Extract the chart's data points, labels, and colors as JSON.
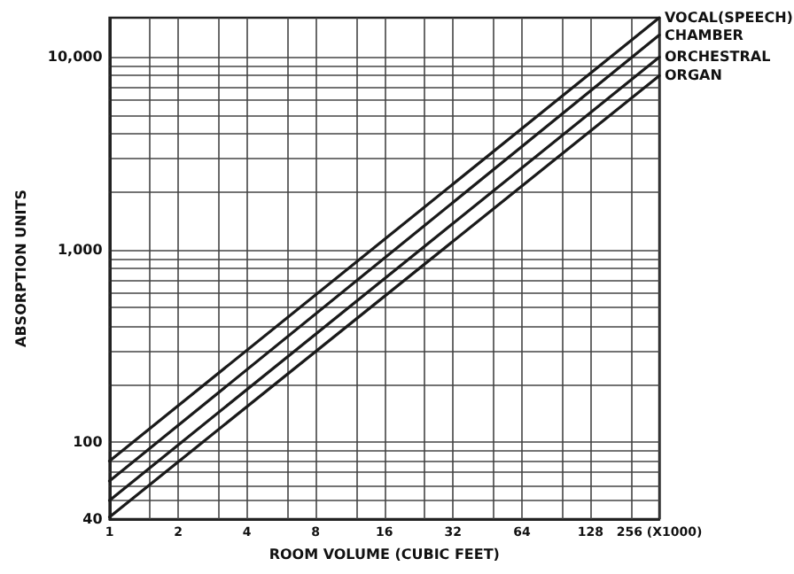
{
  "chart_data": {
    "type": "line",
    "xlabel": "ROOM VOLUME (CUBIC FEET)",
    "ylabel": "ABSORPTION UNITS",
    "log": "xy",
    "grid": true,
    "legend": false,
    "marker": "none",
    "line_style": "solid",
    "xlim": [
      1,
      256
    ],
    "ylim": [
      40,
      16000
    ],
    "x": [
      1,
      256
    ],
    "xticks": [
      1,
      {
        "value": 1.5,
        "label": null
      },
      2,
      {
        "value": 3,
        "label": null
      },
      4,
      {
        "value": 6,
        "label": null
      },
      8,
      {
        "value": 12,
        "label": null
      },
      16,
      {
        "value": 24,
        "label": null
      },
      32,
      {
        "value": 48,
        "label": null
      },
      64,
      {
        "value": 96,
        "label": null
      },
      128,
      {
        "value": 192,
        "label": null
      },
      {
        "value": 256,
        "label": "256 (X1000)"
      }
    ],
    "yticks": [
      40,
      {
        "value": 50,
        "label": null
      },
      {
        "value": 60,
        "label": null
      },
      {
        "value": 70,
        "label": null
      },
      {
        "value": 80,
        "label": null
      },
      {
        "value": 90,
        "label": null
      },
      100,
      {
        "value": 200,
        "label": null
      },
      {
        "value": 300,
        "label": null
      },
      {
        "value": 400,
        "label": null
      },
      {
        "value": 500,
        "label": null
      },
      {
        "value": 600,
        "label": null
      },
      {
        "value": 700,
        "label": null
      },
      {
        "value": 800,
        "label": null
      },
      {
        "value": 900,
        "label": null
      },
      {
        "value": 1000,
        "label": "1,000"
      },
      {
        "value": 2000,
        "label": null
      },
      {
        "value": 3000,
        "label": null
      },
      {
        "value": 4000,
        "label": null
      },
      {
        "value": 5000,
        "label": null
      },
      {
        "value": 6000,
        "label": null
      },
      {
        "value": 7000,
        "label": null
      },
      {
        "value": 8000,
        "label": null
      },
      {
        "value": 9000,
        "label": null
      },
      {
        "value": 10000,
        "label": "10,000"
      }
    ],
    "series": [
      {
        "name": "VOCAL(SPEECH)",
        "color": "#1a1a1a",
        "values": [
          80,
          16000
        ]
      },
      {
        "name": "CHAMBER",
        "color": "#1a1a1a",
        "values": [
          63,
          13000
        ]
      },
      {
        "name": "ORCHESTRAL",
        "color": "#1a1a1a",
        "values": [
          50,
          10000
        ]
      },
      {
        "name": "ORGAN",
        "color": "#1a1a1a",
        "values": [
          41,
          8000
        ]
      }
    ]
  }
}
